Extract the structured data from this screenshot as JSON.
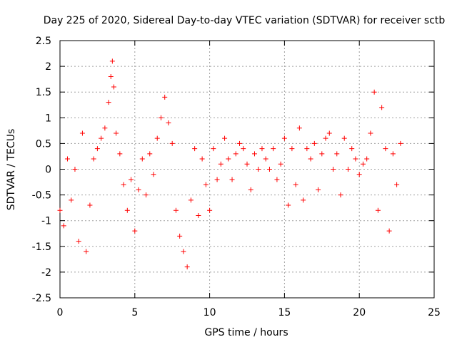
{
  "chart_data": {
    "type": "scatter",
    "title": "Day 225 of 2020, Sidereal Day-to-day VTEC variation (SDTVAR) for receiver sctb",
    "xlabel": "GPS time / hours",
    "ylabel": "SDTVAR / TECUs",
    "xlim": [
      0,
      25
    ],
    "ylim": [
      -2.5,
      2.5
    ],
    "x_ticks": [
      0,
      5,
      10,
      15,
      20,
      25
    ],
    "x_tick_labels": [
      "0",
      "5",
      "10",
      "15",
      "20",
      "25"
    ],
    "y_ticks": [
      -2.5,
      -2,
      -1.5,
      -1,
      -0.5,
      0,
      0.5,
      1,
      1.5,
      2,
      2.5
    ],
    "y_tick_labels": [
      "-2.5",
      "-2",
      "-1.5",
      "-1",
      "-0.5",
      "0",
      "0.5",
      "1",
      "1.5",
      "2",
      "2.5"
    ],
    "grid": true,
    "marker": "+",
    "color": "#ff0000",
    "series": [
      {
        "name": "SDTVAR",
        "x": [
          0.0,
          0.25,
          0.5,
          0.75,
          1.0,
          1.25,
          1.5,
          1.75,
          2.0,
          2.25,
          2.5,
          2.75,
          3.0,
          3.25,
          3.4,
          3.5,
          3.6,
          3.75,
          4.0,
          4.25,
          4.5,
          4.75,
          5.0,
          5.25,
          5.5,
          5.75,
          6.0,
          6.25,
          6.5,
          6.75,
          7.0,
          7.25,
          7.5,
          7.75,
          8.0,
          8.25,
          8.5,
          8.75,
          9.0,
          9.25,
          9.5,
          9.75,
          10.0,
          10.25,
          10.5,
          10.75,
          11.0,
          11.25,
          11.5,
          11.75,
          12.0,
          12.25,
          12.5,
          12.75,
          13.0,
          13.25,
          13.5,
          13.75,
          14.0,
          14.25,
          14.5,
          14.75,
          15.0,
          15.25,
          15.5,
          15.75,
          16.0,
          16.25,
          16.5,
          16.75,
          17.0,
          17.25,
          17.5,
          17.75,
          18.0,
          18.25,
          18.5,
          18.75,
          19.0,
          19.25,
          19.5,
          19.75,
          20.0,
          20.25,
          20.5,
          20.75,
          21.0,
          21.25,
          21.5,
          21.75,
          22.0,
          22.25,
          22.5,
          22.75
        ],
        "y": [
          -0.8,
          -1.1,
          0.2,
          -0.6,
          0.0,
          -1.4,
          0.7,
          -1.6,
          -0.7,
          0.2,
          0.4,
          0.6,
          0.8,
          1.3,
          1.8,
          2.1,
          1.6,
          0.7,
          0.3,
          -0.3,
          -0.8,
          -0.2,
          -1.2,
          -0.4,
          0.2,
          -0.5,
          0.3,
          -0.1,
          0.6,
          1.0,
          1.4,
          0.9,
          0.5,
          -0.8,
          -1.3,
          -1.6,
          -1.9,
          -0.6,
          0.4,
          -0.9,
          0.2,
          -0.3,
          -0.8,
          0.4,
          -0.2,
          0.1,
          0.6,
          0.2,
          -0.2,
          0.3,
          0.5,
          0.4,
          0.1,
          -0.4,
          0.3,
          0.0,
          0.4,
          0.2,
          0.0,
          0.4,
          -0.2,
          0.1,
          0.6,
          -0.7,
          0.4,
          -0.3,
          0.8,
          -0.6,
          0.4,
          0.2,
          0.5,
          -0.4,
          0.3,
          0.6,
          0.7,
          0.0,
          0.3,
          -0.5,
          0.6,
          0.0,
          0.4,
          0.2,
          -0.1,
          0.1,
          0.2,
          0.7,
          1.5,
          -0.8,
          1.2,
          0.4,
          -1.2,
          0.3,
          -0.3,
          0.5
        ]
      }
    ]
  }
}
